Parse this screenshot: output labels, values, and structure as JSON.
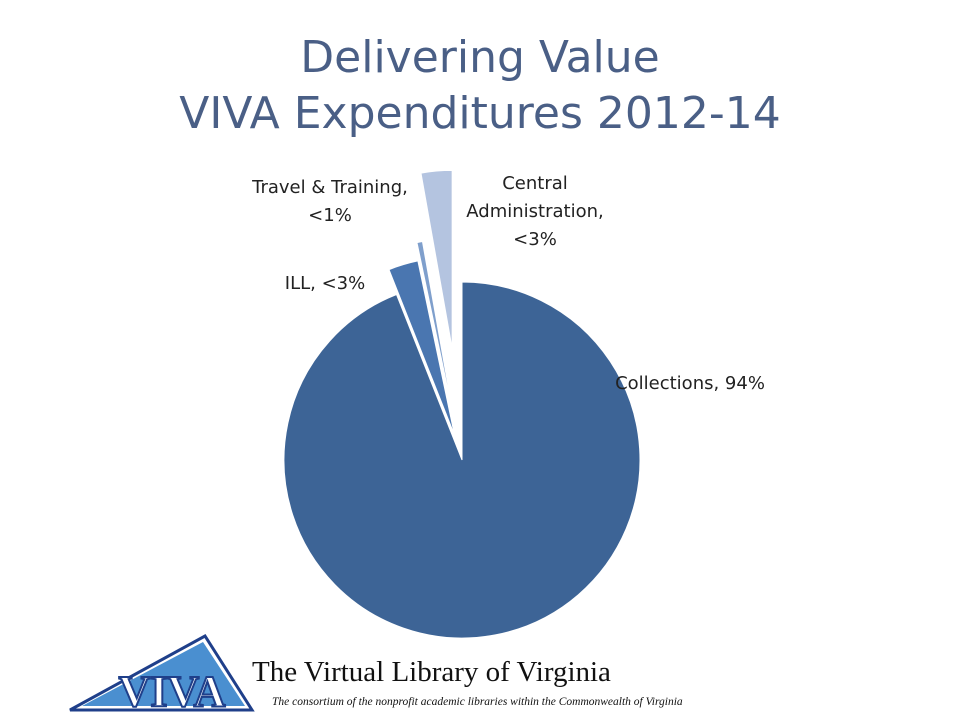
{
  "chart_data": {
    "type": "pie",
    "title": "Delivering Value",
    "subtitle": "VIVA Expenditures 2012-14",
    "values": [
      94,
      2.7,
      0.5,
      2.8
    ],
    "value_labels": [
      "Collections, 94%",
      "ILL, <3%",
      "Travel & Training, <1%",
      "Central Administration, <3%"
    ],
    "colors": [
      "#3d6496",
      "#4a76b0",
      "#7f9fcc",
      "#b4c4e0"
    ]
  },
  "footer": {
    "logo": "VIVA",
    "name": "The Virtual Library of Virginia",
    "tagline": "The consortium of the nonprofit academic libraries within the Commonwealth of Virginia"
  }
}
